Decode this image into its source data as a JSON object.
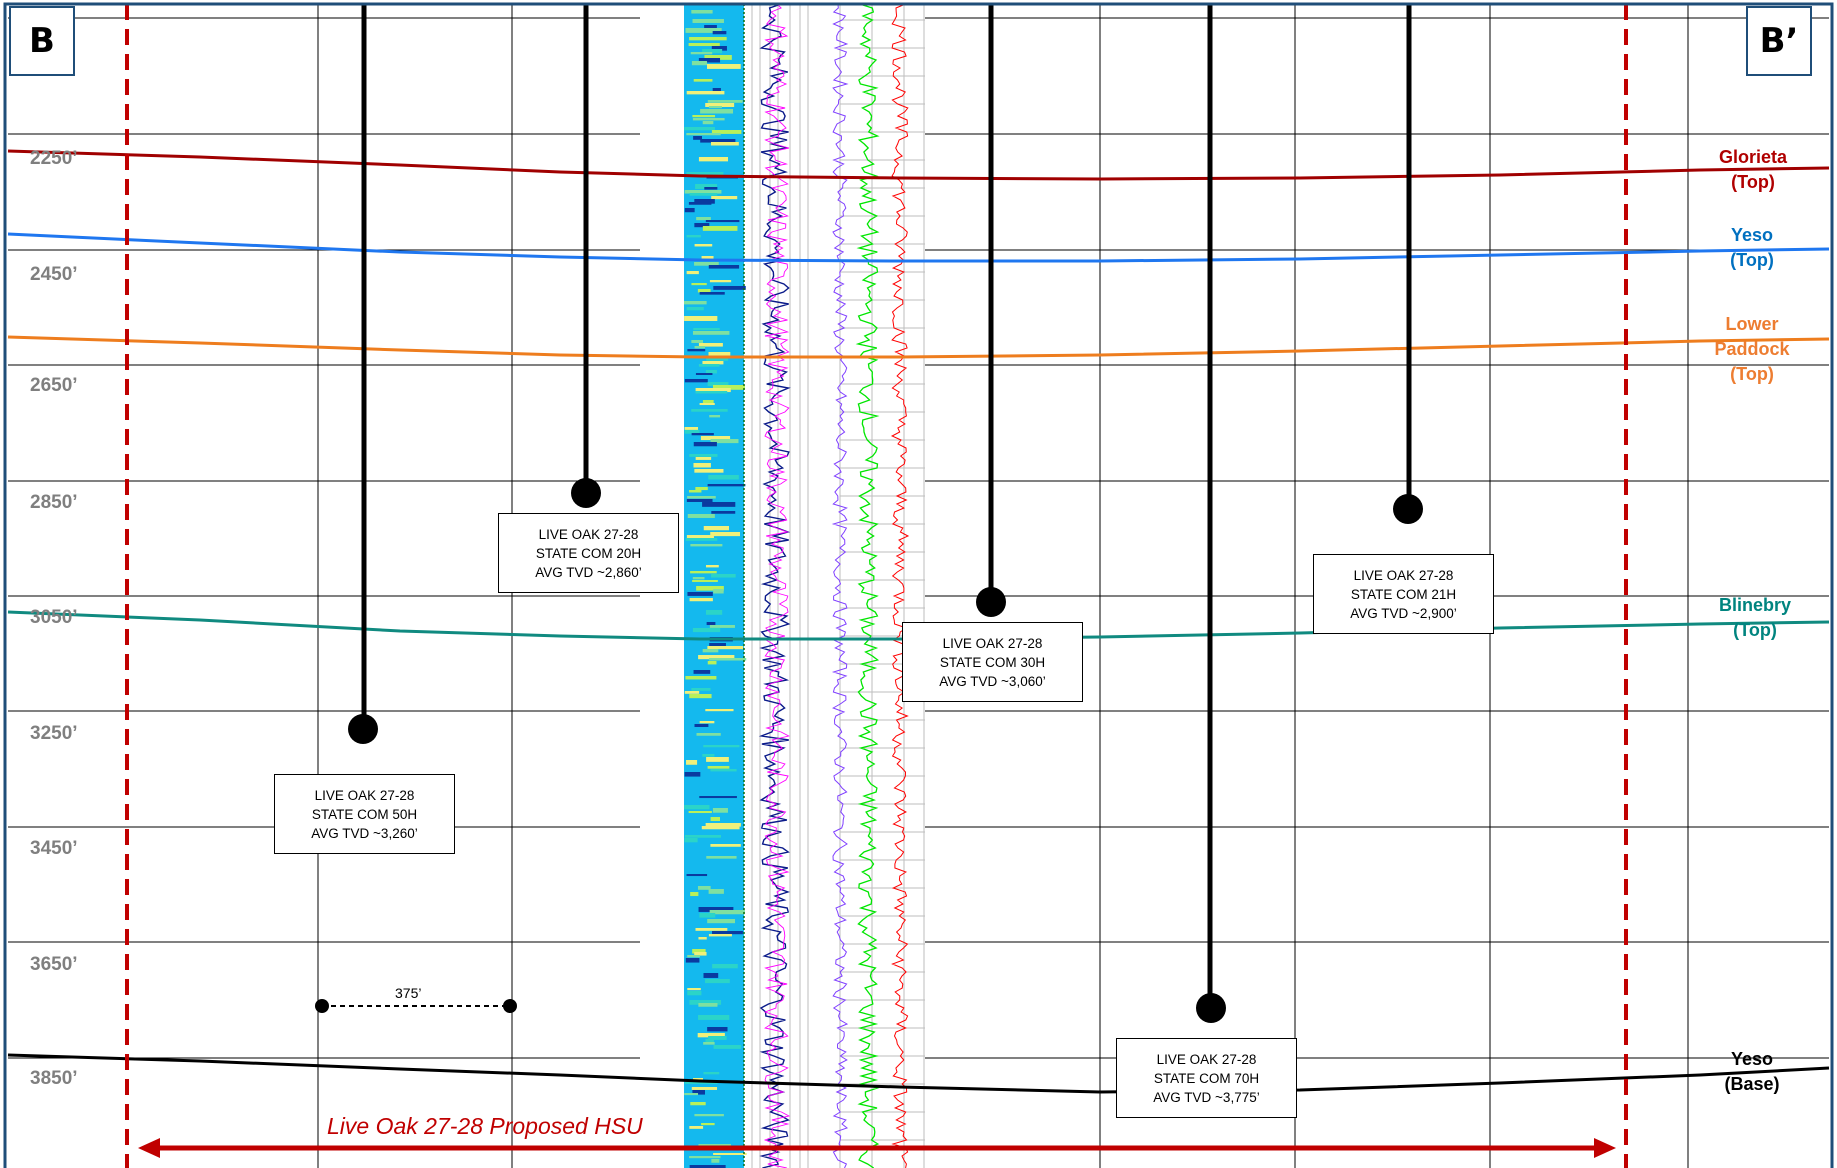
{
  "corners": {
    "left": "B",
    "right": "B’"
  },
  "depth_labels": [
    "2250’",
    "2450’",
    "2650’",
    "2850’",
    "3050’",
    "3250’",
    "3450’",
    "3650’",
    "3850’"
  ],
  "formations": [
    {
      "id": "glorieta",
      "lines": [
        "Glorieta",
        "(Top)"
      ],
      "color": "#b00000"
    },
    {
      "id": "yeso-top",
      "lines": [
        "Yeso",
        "(Top)"
      ],
      "color": "#0070c0"
    },
    {
      "id": "lower-paddock",
      "lines": [
        "Lower",
        "Paddock",
        "(Top)"
      ],
      "color": "#ed7d31"
    },
    {
      "id": "blinebry",
      "lines": [
        "Blinebry",
        "(Top)"
      ],
      "color": "#00847f"
    },
    {
      "id": "yeso-base",
      "lines": [
        "Yeso",
        "(Base)"
      ],
      "color": "#000000"
    }
  ],
  "wells": [
    {
      "id": "20h",
      "lines": [
        "LIVE OAK 27-28",
        "STATE COM 20H",
        "AVG TVD ~2,860’"
      ]
    },
    {
      "id": "50h",
      "lines": [
        "LIVE OAK 27-28",
        "STATE COM 50H",
        "AVG TVD ~3,260’"
      ]
    },
    {
      "id": "30h",
      "lines": [
        "LIVE OAK 27-28",
        "STATE COM 30H",
        "AVG TVD ~3,060’"
      ]
    },
    {
      "id": "21h",
      "lines": [
        "LIVE OAK 27-28",
        "STATE COM 21H",
        "AVG TVD ~2,900’"
      ]
    },
    {
      "id": "70h",
      "lines": [
        "LIVE OAK 27-28",
        "STATE COM 70H",
        "AVG TVD ~3,775’"
      ]
    }
  ],
  "scale_bar": {
    "label": "375’"
  },
  "hsu": {
    "label": "Live Oak 27-28 Proposed HSU",
    "color": "#c00000"
  }
}
